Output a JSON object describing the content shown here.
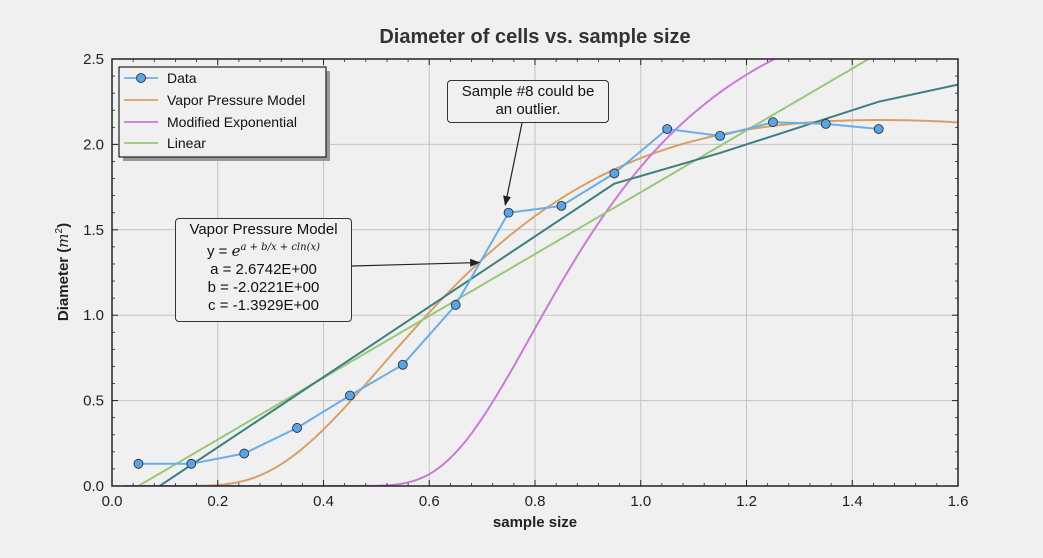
{
  "chart_data": {
    "type": "line",
    "title": "Diameter of cells vs. sample size",
    "xlabel": "sample size",
    "ylabel_prefix": "Diameter (",
    "ylabel_math": "m",
    "ylabel_exp": "2",
    "ylabel_suffix": ")",
    "xlim": [
      0.0,
      1.6
    ],
    "ylim": [
      0.0,
      2.5
    ],
    "xticks": [
      0.0,
      0.2,
      0.4,
      0.6,
      0.8,
      1.0,
      1.2,
      1.4,
      1.6
    ],
    "xtick_labels": [
      "0.0",
      "0.2",
      "0.4",
      "0.6",
      "0.8",
      "1.0",
      "1.2",
      "1.4",
      "1.6"
    ],
    "yticks": [
      0.0,
      0.5,
      1.0,
      1.5,
      2.0,
      2.5
    ],
    "ytick_labels": [
      "0.0",
      "0.5",
      "1.0",
      "1.5",
      "2.0",
      "2.5"
    ],
    "grid": true,
    "legend_position": "top-left",
    "series": [
      {
        "name": "Data",
        "kind": "markers-line",
        "color": "#6aaee6",
        "marker_fill": "#5ba4e0",
        "x": [
          0.05,
          0.15,
          0.25,
          0.35,
          0.45,
          0.55,
          0.65,
          0.75,
          0.85,
          0.95,
          1.05,
          1.15,
          1.25,
          1.35,
          1.45
        ],
        "y": [
          0.13,
          0.13,
          0.19,
          0.34,
          0.53,
          0.71,
          1.06,
          1.6,
          1.64,
          1.83,
          2.09,
          2.05,
          2.13,
          2.12,
          2.09
        ]
      },
      {
        "name": "Vapor Pressure Model",
        "kind": "function",
        "model": "vapor",
        "color": "#d9a066",
        "params": {
          "a": 2.6742,
          "b": -2.0221,
          "c": -1.3929
        }
      },
      {
        "name": "Modified Exponential",
        "kind": "function",
        "model": "modexp",
        "color": "#cc79d9",
        "params": {
          "a": 3.05,
          "b": 0.49,
          "c": 4.0
        }
      },
      {
        "name": "Linear",
        "kind": "function",
        "model": "linear",
        "color": "#98c87a",
        "params": {
          "m": 1.81,
          "b": -0.09
        }
      },
      {
        "name": "",
        "kind": "polyline",
        "color": "#3d7f7f",
        "x": [
          0.09,
          0.95,
          1.05,
          1.15,
          1.25,
          1.35,
          1.45,
          1.6
        ],
        "y": [
          0.0,
          1.77,
          1.86,
          1.95,
          2.05,
          2.15,
          2.25,
          2.35
        ]
      }
    ],
    "annotations": [
      {
        "id": "outlier",
        "lines": [
          "Sample #8 could be",
          "an outlier."
        ],
        "arrow_to": [
          0.74,
          1.61
        ]
      },
      {
        "id": "model",
        "title": "Vapor Pressure Model",
        "equation_prefix": "y = ",
        "equation_base": "e",
        "equation_exp": "a + b/x + cln(x)",
        "param_lines": [
          "a = 2.6742E+00",
          "b = -2.0221E+00",
          "c = -1.3929E+00"
        ],
        "arrow_to": [
          0.7,
          1.32
        ]
      }
    ]
  }
}
